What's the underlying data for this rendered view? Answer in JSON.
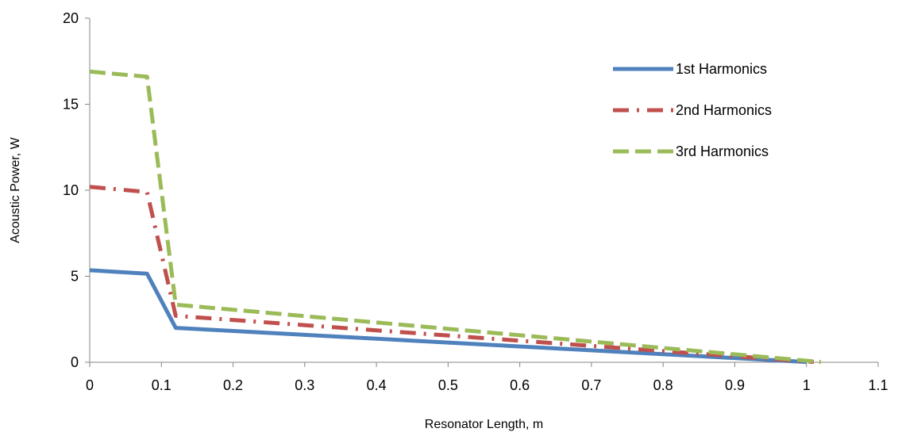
{
  "chart_data": {
    "type": "line",
    "title": "",
    "xlabel": "Resonator Length, m",
    "ylabel": "Acoustic Power, W",
    "xlim": [
      0,
      1.1
    ],
    "ylim": [
      0,
      20
    ],
    "xticks": [
      0,
      0.1,
      0.2,
      0.3,
      0.4,
      0.5,
      0.6,
      0.7,
      0.8,
      0.9,
      1,
      1.1
    ],
    "xtick_labels": [
      "0",
      "0.1",
      "0.2",
      "0.3",
      "0.4",
      "0.5",
      "0.6",
      "0.7",
      "0.8",
      "0.9",
      "1",
      "1.1"
    ],
    "yticks": [
      0,
      5,
      10,
      15,
      20
    ],
    "ytick_labels": [
      "0",
      "5",
      "10",
      "15",
      "20"
    ],
    "grid": false,
    "legend_position": "top-right",
    "series": [
      {
        "name": "1st Harmonics",
        "color": "#4F81BD",
        "style": "solid",
        "points": [
          [
            0,
            5.35
          ],
          [
            0.08,
            5.15
          ],
          [
            0.12,
            2.0
          ],
          [
            1.0,
            0.02
          ]
        ]
      },
      {
        "name": "2nd Harmonics",
        "color": "#C0504D",
        "style": "dash-dot",
        "points": [
          [
            0,
            10.2
          ],
          [
            0.08,
            9.9
          ],
          [
            0.12,
            2.7
          ],
          [
            1.01,
            0.02
          ]
        ]
      },
      {
        "name": "3rd Harmonics",
        "color": "#9BBB59",
        "style": "dash",
        "points": [
          [
            0,
            16.9
          ],
          [
            0.08,
            16.6
          ],
          [
            0.12,
            3.35
          ],
          [
            1.02,
            0.02
          ]
        ]
      }
    ]
  }
}
